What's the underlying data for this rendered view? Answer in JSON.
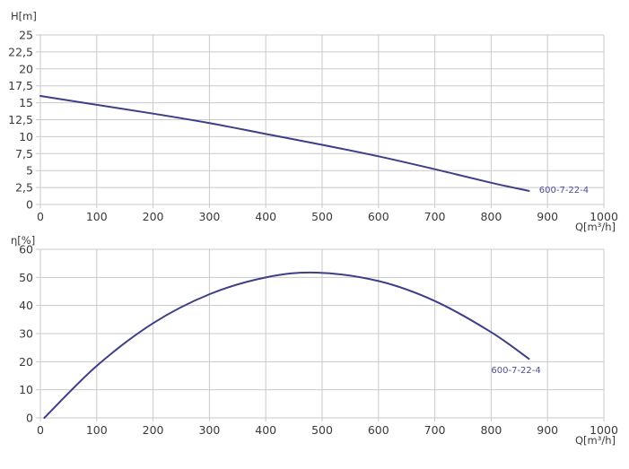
{
  "chart_data": [
    {
      "type": "line",
      "title": "",
      "ylabel": "H[m]",
      "xlabel": "Q[m³/h]",
      "xlim": [
        0,
        1000
      ],
      "ylim": [
        0,
        25
      ],
      "x_ticks": [
        "0",
        "100",
        "200",
        "300",
        "400",
        "500",
        "600",
        "700",
        "800",
        "900",
        "1000"
      ],
      "y_ticks": [
        "0",
        "2,5",
        "5",
        "7,5",
        "10",
        "12,5",
        "15",
        "17,5",
        "20",
        "22,5",
        "25"
      ],
      "grid": true,
      "series": [
        {
          "name": "600-7-22-4",
          "color": "#3d3f87",
          "x": [
            0,
            100,
            200,
            300,
            400,
            500,
            600,
            700,
            800,
            867
          ],
          "y": [
            16.0,
            14.7,
            13.4,
            12.0,
            10.4,
            8.8,
            7.1,
            5.2,
            3.2,
            2.0
          ]
        }
      ],
      "annotations": [
        {
          "text": "600-7-22-4",
          "x": 885,
          "y": 1.7
        }
      ]
    },
    {
      "type": "line",
      "title": "",
      "ylabel": "η[%]",
      "xlabel": "Q[m³/h]",
      "xlim": [
        0,
        1000
      ],
      "ylim": [
        0,
        60
      ],
      "x_ticks": [
        "0",
        "100",
        "200",
        "300",
        "400",
        "500",
        "600",
        "700",
        "800",
        "900",
        "1000"
      ],
      "y_ticks": [
        "0",
        "10",
        "20",
        "30",
        "40",
        "50",
        "60"
      ],
      "grid": true,
      "series": [
        {
          "name": "600-7-22-4",
          "color": "#3d3f87",
          "x": [
            7,
            100,
            200,
            300,
            400,
            490,
            600,
            700,
            800,
            867
          ],
          "y": [
            0,
            18.5,
            33.7,
            44.0,
            50.0,
            51.7,
            48.7,
            41.6,
            30.5,
            21.0
          ]
        }
      ],
      "annotations": [
        {
          "text": "600-7-22-4",
          "x": 800,
          "y": 16
        }
      ]
    }
  ]
}
